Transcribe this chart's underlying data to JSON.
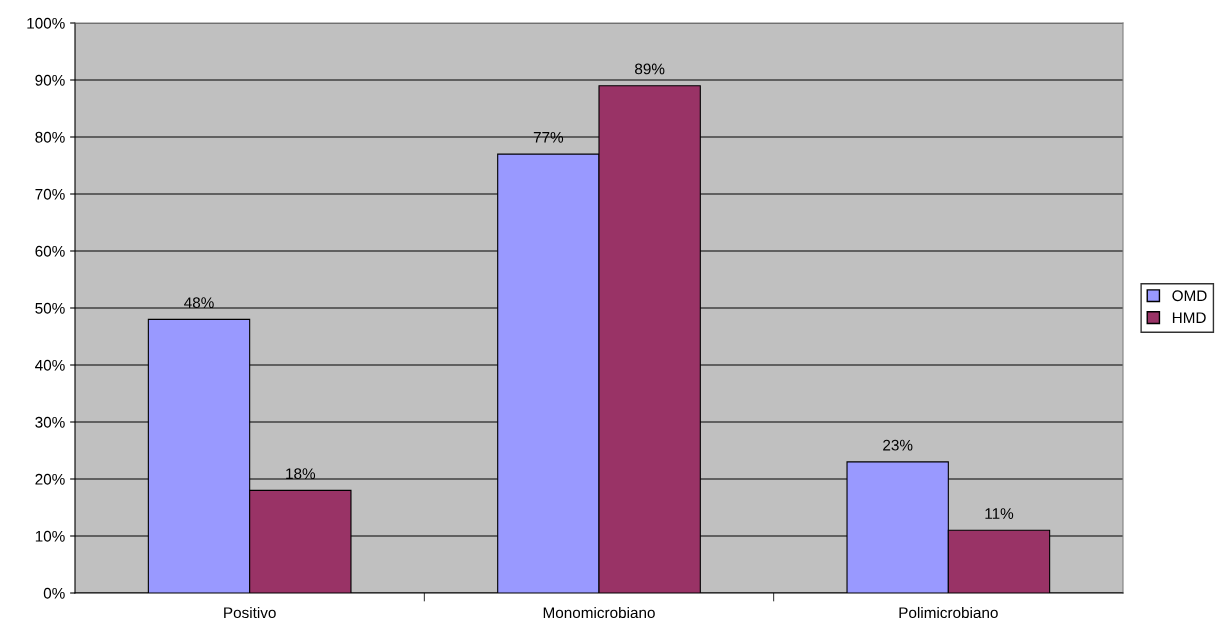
{
  "chart_data": {
    "type": "bar",
    "categories": [
      "Positivo",
      "Monomicrobiano",
      "Polimicrobiano"
    ],
    "series": [
      {
        "name": "OMD",
        "color": "#9999ff",
        "values": [
          48,
          77,
          23
        ],
        "value_labels": [
          "48%",
          "77%",
          "23%"
        ]
      },
      {
        "name": "HMD",
        "color": "#993366",
        "values": [
          18,
          89,
          11
        ],
        "value_labels": [
          "18%",
          "89%",
          "11%"
        ]
      }
    ],
    "ylim": [
      0,
      100
    ],
    "yticks": [
      {
        "value": 0,
        "label": "0%"
      },
      {
        "value": 10,
        "label": "10%"
      },
      {
        "value": 20,
        "label": "20%"
      },
      {
        "value": 30,
        "label": "30%"
      },
      {
        "value": 40,
        "label": "40%"
      },
      {
        "value": 50,
        "label": "50%"
      },
      {
        "value": 60,
        "label": "60%"
      },
      {
        "value": 70,
        "label": "70%"
      },
      {
        "value": 80,
        "label": "80%"
      },
      {
        "value": 90,
        "label": "90%"
      },
      {
        "value": 100,
        "label": "100%"
      }
    ],
    "grid": "y",
    "legend": "right"
  }
}
